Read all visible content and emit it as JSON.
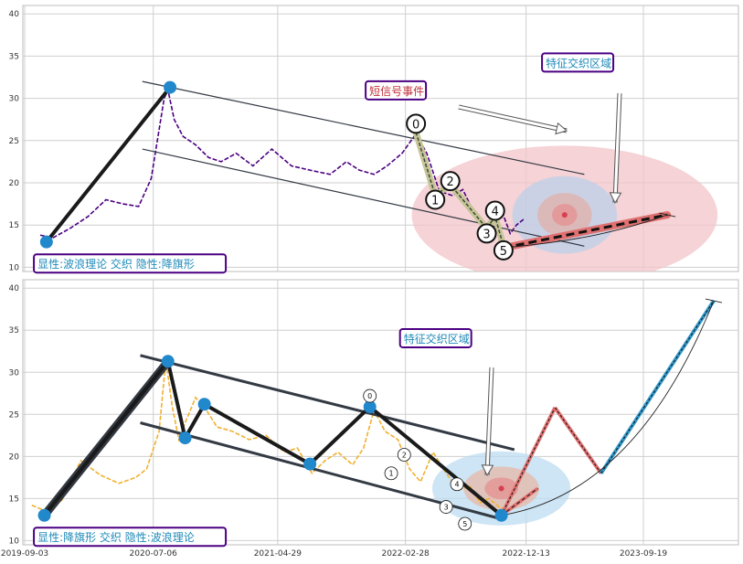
{
  "chart_data": [
    {
      "type": "line",
      "panel": "top",
      "y_ticks": [
        10,
        15,
        20,
        25,
        30,
        35,
        40
      ],
      "ylim": [
        9.5,
        41
      ],
      "grid": true,
      "price_color": "#4b0082",
      "price_series": {
        "x": [
          "2019-10-10",
          "2019-11-10",
          "2019-12-20",
          "2020-02-01",
          "2020-03-15",
          "2020-04-25",
          "2020-06-01",
          "2020-07-01",
          "2020-08-01",
          "2020-08-10",
          "2020-08-25",
          "2020-09-15",
          "2020-10-15",
          "2020-11-15",
          "2020-12-15",
          "2021-01-20",
          "2021-03-01",
          "2021-04-15",
          "2021-06-01",
          "2021-07-15",
          "2021-09-01",
          "2021-10-10",
          "2021-11-10",
          "2021-12-15",
          "2022-01-15",
          "2022-02-20",
          "2022-03-25",
          "2022-04-20",
          "2022-05-20",
          "2022-06-20",
          "2022-07-15",
          "2022-08-15",
          "2022-09-15",
          "2022-10-15",
          "2022-11-05",
          "2022-11-20",
          "2022-12-10"
        ],
        "y": [
          13.8,
          13.5,
          14.6,
          16.0,
          18.0,
          17.5,
          17.2,
          20.5,
          30.0,
          31.0,
          27.5,
          25.5,
          24.5,
          23.0,
          22.5,
          23.5,
          22.0,
          24.0,
          22.0,
          21.5,
          21.0,
          22.5,
          21.5,
          21.0,
          22.0,
          23.5,
          25.8,
          23.5,
          19.0,
          18.5,
          19.2,
          16.0,
          14.5,
          16.8,
          14.0,
          15.0,
          15.8
        ]
      },
      "trend_lines": [
        {
          "points": [
            [
              "2019-10-25",
              13.0
            ],
            [
              "2020-08-15",
              31.3
            ]
          ]
        }
      ],
      "channel_lines": [
        {
          "points": [
            [
              "2020-06-10",
              32.0
            ],
            [
              "2023-05-01",
              21.0
            ]
          ]
        },
        {
          "points": [
            [
              "2020-06-10",
              24.0
            ],
            [
              "2023-05-01",
              12.5
            ]
          ]
        }
      ],
      "wave_points": [
        {
          "label": "0",
          "x": "2022-03-25",
          "y": 27.0
        },
        {
          "label": "1",
          "x": "2022-05-10",
          "y": 18.0
        },
        {
          "label": "2",
          "x": "2022-06-15",
          "y": 20.2
        },
        {
          "label": "3",
          "x": "2022-09-10",
          "y": 14.0
        },
        {
          "label": "4",
          "x": "2022-09-30",
          "y": 16.7
        },
        {
          "label": "5",
          "x": "2022-10-20",
          "y": 12.0
        }
      ],
      "wave_path": [
        [
          "2022-03-25",
          26.0
        ],
        [
          "2022-05-10",
          18.5
        ],
        [
          "2022-06-15",
          19.8
        ],
        [
          "2022-09-10",
          14.6
        ],
        [
          "2022-09-30",
          16.0
        ],
        [
          "2022-10-20",
          12.5
        ]
      ],
      "forecast_line": {
        "points": [
          [
            "2022-10-20",
            12.3
          ],
          [
            "2023-11-15",
            16.2
          ]
        ],
        "color": "#e07070"
      },
      "forecast_curve": {
        "points": [
          [
            "2022-10-20",
            12.3
          ],
          [
            "2023-03-15",
            13.0
          ],
          [
            "2023-07-01",
            13.8
          ],
          [
            "2023-11-15",
            16.2
          ]
        ]
      },
      "zones": [
        {
          "center": [
            "2023-03-15",
            16.2
          ],
          "rx_days": 365,
          "ry": 8.2,
          "color": "#f2c4c8"
        },
        {
          "center": [
            "2023-03-15",
            16.2
          ],
          "rx_days": 125,
          "ry": 4.6,
          "color": "#bcd0ea"
        },
        {
          "center": [
            "2023-03-15",
            16.2
          ],
          "rx_days": 65,
          "ry": 2.6,
          "color": "#e0b0a8"
        },
        {
          "center": [
            "2023-03-15",
            16.2
          ],
          "rx_days": 30,
          "ry": 1.3,
          "color": "#e49090"
        }
      ],
      "markers": [
        {
          "x": "2019-10-25",
          "y": 13.0
        },
        {
          "x": "2020-08-15",
          "y": 31.3
        }
      ],
      "annotations": [
        {
          "text": "显性:波浪理论 交织 隐性:降旗形",
          "x": "2019-09-25",
          "y": 9.8,
          "color": "#1f8ab8",
          "border": "#4b0082"
        },
        {
          "text": "短信号事件",
          "x": "2021-11-25",
          "y": 30.3,
          "color": "#c0303a",
          "border": "#4b0082"
        },
        {
          "text": "特征交织区域",
          "x": "2023-01-20",
          "y": 33.6,
          "color": "#1f8ab8",
          "border": "#4b0082"
        }
      ]
    },
    {
      "type": "line",
      "panel": "bottom",
      "y_ticks": [
        10,
        15,
        20,
        25,
        30,
        35,
        40
      ],
      "ylim": [
        9.5,
        41
      ],
      "x_ticks": [
        "2019-09-03",
        "2020-07-06",
        "2021-04-29",
        "2022-02-28",
        "2022-12-13",
        "2023-09-19"
      ],
      "grid": true,
      "price_color": "#f0b030",
      "price_series": {
        "x": [
          "2019-09-20",
          "2019-10-20",
          "2019-12-01",
          "2020-01-15",
          "2020-03-01",
          "2020-04-15",
          "2020-05-25",
          "2020-06-20",
          "2020-07-20",
          "2020-08-05",
          "2020-08-20",
          "2020-09-05",
          "2020-09-20",
          "2020-10-15",
          "2020-11-10",
          "2020-12-05",
          "2021-01-10",
          "2021-02-20",
          "2021-04-01",
          "2021-05-15",
          "2021-06-15",
          "2021-07-20",
          "2021-08-20",
          "2021-09-20",
          "2021-10-25",
          "2021-11-20",
          "2021-12-15",
          "2022-01-10",
          "2022-02-10",
          "2022-03-10",
          "2022-04-05",
          "2022-05-05",
          "2022-06-05",
          "2022-07-05",
          "2022-08-01",
          "2022-08-25",
          "2022-09-15",
          "2022-10-10",
          "2022-11-01"
        ],
        "y": [
          14.2,
          13.6,
          14.8,
          19.5,
          17.8,
          16.8,
          17.5,
          18.5,
          23.0,
          31.5,
          26.0,
          22.0,
          24.0,
          27.0,
          25.5,
          23.5,
          23.0,
          22.0,
          22.5,
          20.5,
          21.0,
          18.0,
          19.5,
          20.5,
          19.0,
          21.0,
          25.5,
          23.0,
          22.0,
          18.5,
          17.0,
          20.5,
          18.0,
          16.0,
          16.5,
          14.5,
          15.0,
          14.0,
          13.5
        ]
      },
      "trend_lines": [
        {
          "points": [
            [
              "2019-10-20",
              13.0
            ],
            [
              "2020-08-10",
              31.3
            ],
            [
              "2020-09-20",
              22.2
            ],
            [
              "2020-11-05",
              26.2
            ],
            [
              "2021-07-15",
              19.1
            ],
            [
              "2021-12-05",
              25.9
            ],
            [
              "2022-10-15",
              13.0
            ]
          ],
          "width": 4
        }
      ],
      "thick_leg": {
        "points": [
          [
            "2019-10-20",
            13.0
          ],
          [
            "2020-08-10",
            31.3
          ]
        ],
        "color": "#333a44",
        "width": 9
      },
      "channel_lines": [
        {
          "points": [
            [
              "2020-06-05",
              32.0
            ],
            [
              "2022-11-15",
              20.8
            ]
          ]
        },
        {
          "points": [
            [
              "2020-06-05",
              24.0
            ],
            [
              "2022-10-20",
              12.5
            ]
          ]
        }
      ],
      "wave_points": [
        {
          "label": "0",
          "x": "2021-12-05",
          "y": 27.2
        },
        {
          "label": "1",
          "x": "2022-01-25",
          "y": 18.0
        },
        {
          "label": "2",
          "x": "2022-02-25",
          "y": 20.2
        },
        {
          "label": "3",
          "x": "2022-06-05",
          "y": 14.0
        },
        {
          "label": "4",
          "x": "2022-07-01",
          "y": 16.7
        },
        {
          "label": "5",
          "x": "2022-07-20",
          "y": 12.0
        }
      ],
      "forecast_legs": [
        {
          "points": [
            [
              "2022-10-15",
              13.0
            ],
            [
              "2023-02-20",
              25.8
            ]
          ],
          "color": "#e07070"
        },
        {
          "points": [
            [
              "2023-02-20",
              25.8
            ],
            [
              "2023-06-10",
              18.0
            ]
          ],
          "color": "#e07070"
        },
        {
          "points": [
            [
              "2023-06-10",
              18.0
            ],
            [
              "2024-03-05",
              38.5
            ]
          ],
          "color": "#3399cc"
        }
      ],
      "forecast_short": {
        "points": [
          [
            "2022-10-15",
            13.0
          ],
          [
            "2023-01-10",
            16.2
          ]
        ],
        "color": "#e07070"
      },
      "forecast_curve": {
        "points": [
          [
            "2022-10-15",
            13.0
          ],
          [
            "2023-04-15",
            14.5
          ],
          [
            "2023-10-15",
            21.0
          ],
          [
            "2024-03-05",
            38.5
          ]
        ]
      },
      "zones": [
        {
          "center": [
            "2022-10-15",
            16.2
          ],
          "rx_days": 165,
          "ry": 4.4,
          "color": "#bcdcf0"
        },
        {
          "center": [
            "2022-10-15",
            16.2
          ],
          "rx_days": 90,
          "ry": 2.6,
          "color": "#e6b8a8"
        },
        {
          "center": [
            "2022-10-15",
            16.2
          ],
          "rx_days": 40,
          "ry": 1.3,
          "color": "#e49090"
        }
      ],
      "markers": [
        {
          "x": "2019-10-20",
          "y": 13.0
        },
        {
          "x": "2020-08-10",
          "y": 31.3
        },
        {
          "x": "2020-09-20",
          "y": 22.2
        },
        {
          "x": "2020-11-05",
          "y": 26.2
        },
        {
          "x": "2021-07-15",
          "y": 19.1
        },
        {
          "x": "2021-12-05",
          "y": 25.9
        },
        {
          "x": "2022-10-15",
          "y": 13.0
        }
      ],
      "annotations": [
        {
          "text": "显性:降旗形 交织 隐性:波浪理论",
          "x": "2019-09-25",
          "y": 9.8,
          "color": "#1f8ab8",
          "border": "#4b0082"
        },
        {
          "text": "特征交织区域",
          "x": "2022-02-15",
          "y": 33.4,
          "color": "#1f8ab8",
          "border": "#4b0082"
        }
      ]
    }
  ]
}
